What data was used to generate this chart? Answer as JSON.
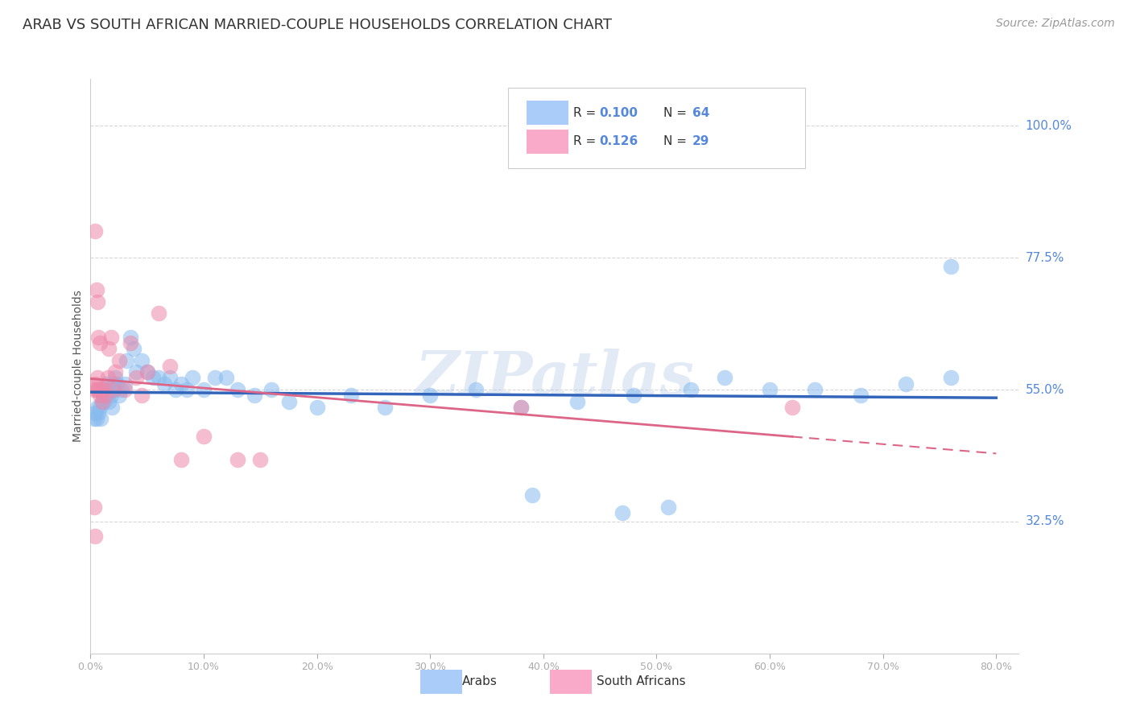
{
  "title": "ARAB VS SOUTH AFRICAN MARRIED-COUPLE HOUSEHOLDS CORRELATION CHART",
  "source": "Source: ZipAtlas.com",
  "ylabel": "Married-couple Households",
  "ytick_labels": [
    "100.0%",
    "77.5%",
    "55.0%",
    "32.5%"
  ],
  "ytick_values": [
    1.0,
    0.775,
    0.55,
    0.325
  ],
  "xtick_labels": [
    "0.0%",
    "10.0%",
    "20.0%",
    "30.0%",
    "40.0%",
    "50.0%",
    "60.0%",
    "70.0%",
    "80.0%"
  ],
  "xtick_values": [
    0.0,
    0.1,
    0.2,
    0.3,
    0.4,
    0.5,
    0.6,
    0.7,
    0.8
  ],
  "xlim": [
    0.0,
    0.82
  ],
  "ylim": [
    0.1,
    1.08
  ],
  "legend_color_arab": "#aaccf8",
  "legend_color_sa": "#f8aac8",
  "arab_color": "#88bbee",
  "south_african_color": "#ee88aa",
  "arab_line_color": "#3366bb",
  "south_african_line_color": "#dd6688",
  "watermark": "ZIPatlas",
  "arab_points_x": [
    0.003,
    0.004,
    0.005,
    0.006,
    0.007,
    0.008,
    0.009,
    0.01,
    0.011,
    0.012,
    0.013,
    0.014,
    0.015,
    0.016,
    0.017,
    0.018,
    0.019,
    0.02,
    0.021,
    0.022,
    0.023,
    0.025,
    0.027,
    0.03,
    0.032,
    0.035,
    0.038,
    0.04,
    0.045,
    0.05,
    0.055,
    0.06,
    0.065,
    0.07,
    0.075,
    0.08,
    0.085,
    0.09,
    0.1,
    0.11,
    0.12,
    0.13,
    0.145,
    0.16,
    0.175,
    0.2,
    0.23,
    0.26,
    0.3,
    0.34,
    0.38,
    0.43,
    0.48,
    0.53,
    0.56,
    0.6,
    0.64,
    0.68,
    0.72,
    0.76,
    0.47,
    0.51,
    0.39,
    0.76
  ],
  "arab_points_y": [
    0.5,
    0.51,
    0.5,
    0.52,
    0.51,
    0.52,
    0.5,
    0.53,
    0.54,
    0.53,
    0.55,
    0.56,
    0.54,
    0.53,
    0.55,
    0.54,
    0.52,
    0.56,
    0.55,
    0.57,
    0.56,
    0.54,
    0.55,
    0.56,
    0.6,
    0.64,
    0.62,
    0.58,
    0.6,
    0.58,
    0.57,
    0.57,
    0.56,
    0.57,
    0.55,
    0.56,
    0.55,
    0.57,
    0.55,
    0.57,
    0.57,
    0.55,
    0.54,
    0.55,
    0.53,
    0.52,
    0.54,
    0.52,
    0.54,
    0.55,
    0.52,
    0.53,
    0.54,
    0.55,
    0.57,
    0.55,
    0.55,
    0.54,
    0.56,
    0.57,
    0.34,
    0.35,
    0.37,
    0.76
  ],
  "sa_points_x": [
    0.003,
    0.004,
    0.005,
    0.006,
    0.007,
    0.008,
    0.009,
    0.01,
    0.012,
    0.013,
    0.015,
    0.016,
    0.018,
    0.02,
    0.022,
    0.025,
    0.03,
    0.035,
    0.04,
    0.045,
    0.05,
    0.06,
    0.07,
    0.08,
    0.1,
    0.13,
    0.15,
    0.38,
    0.62
  ],
  "sa_points_y": [
    0.55,
    0.56,
    0.55,
    0.57,
    0.55,
    0.54,
    0.55,
    0.53,
    0.55,
    0.54,
    0.57,
    0.62,
    0.64,
    0.55,
    0.58,
    0.6,
    0.55,
    0.63,
    0.57,
    0.54,
    0.58,
    0.68,
    0.59,
    0.43,
    0.47,
    0.43,
    0.43,
    0.52,
    0.52
  ],
  "sa_extra_points_x": [
    0.004,
    0.005,
    0.006,
    0.007,
    0.008
  ],
  "sa_extra_points_y": [
    0.82,
    0.72,
    0.7,
    0.64,
    0.63
  ],
  "sa_low_points_x": [
    0.003,
    0.004
  ],
  "sa_low_points_y": [
    0.35,
    0.3
  ],
  "arab_R": 0.1,
  "arab_N": 64,
  "sa_R": 0.126,
  "sa_N": 29,
  "background_color": "#ffffff",
  "grid_color": "#cccccc",
  "title_fontsize": 13,
  "tick_color": "#5588dd"
}
